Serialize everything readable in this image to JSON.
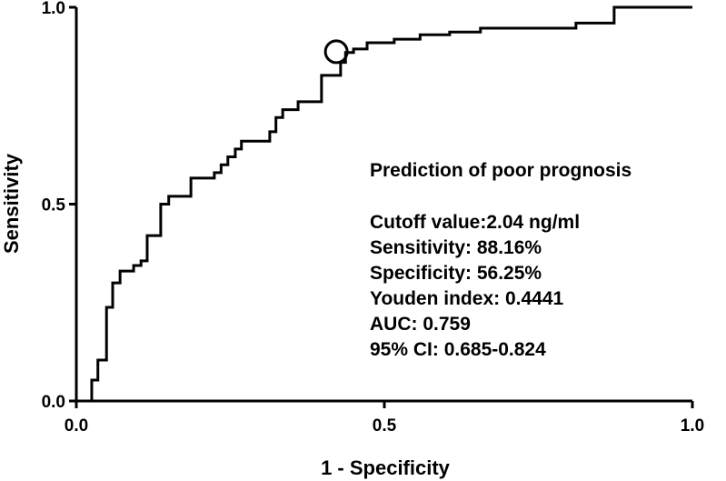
{
  "chart_data": {
    "type": "line",
    "xlabel": "1 - Specificity",
    "ylabel": "Sensitivity",
    "xlim": [
      0,
      1
    ],
    "ylim": [
      0,
      1
    ],
    "xticks": [
      {
        "value": 0,
        "label": "0.0"
      },
      {
        "value": 0.5,
        "label": "0.5"
      },
      {
        "value": 1,
        "label": "1.0"
      }
    ],
    "yticks": [
      {
        "value": 0,
        "label": "0.0"
      },
      {
        "value": 0.5,
        "label": "0.5"
      },
      {
        "value": 1,
        "label": "1.0"
      }
    ],
    "grid": false,
    "series": [
      {
        "color": "#000000",
        "x": [
          0.025,
          0.025,
          0.035,
          0.035,
          0.049,
          0.049,
          0.059,
          0.059,
          0.071,
          0.071,
          0.093,
          0.093,
          0.105,
          0.105,
          0.115,
          0.115,
          0.137,
          0.137,
          0.15,
          0.15,
          0.186,
          0.186,
          0.224,
          0.224,
          0.235,
          0.235,
          0.246,
          0.246,
          0.258,
          0.258,
          0.268,
          0.268,
          0.314,
          0.314,
          0.324,
          0.324,
          0.335,
          0.335,
          0.36,
          0.36,
          0.398,
          0.398,
          0.429,
          0.429,
          0.437,
          0.437,
          0.45,
          0.45,
          0.472,
          0.472,
          0.516,
          0.516,
          0.558,
          0.558,
          0.606,
          0.606,
          0.656,
          0.656,
          0.811,
          0.811,
          0.873,
          0.873,
          1.0
        ],
        "values": [
          0,
          0.053,
          0.053,
          0.104,
          0.104,
          0.238,
          0.238,
          0.3,
          0.3,
          0.33,
          0.33,
          0.344,
          0.344,
          0.356,
          0.356,
          0.42,
          0.42,
          0.5,
          0.5,
          0.52,
          0.52,
          0.566,
          0.566,
          0.58,
          0.58,
          0.6,
          0.6,
          0.62,
          0.62,
          0.64,
          0.64,
          0.66,
          0.66,
          0.684,
          0.684,
          0.72,
          0.72,
          0.74,
          0.74,
          0.76,
          0.76,
          0.827,
          0.827,
          0.86,
          0.86,
          0.885,
          0.885,
          0.894,
          0.894,
          0.91,
          0.91,
          0.919,
          0.919,
          0.93,
          0.93,
          0.937,
          0.937,
          0.947,
          0.947,
          0.96,
          0.96,
          1.0,
          1.0
        ]
      }
    ],
    "marker": {
      "x": 0.422,
      "y": 0.887
    },
    "annotation_title": "Prediction of poor prognosis",
    "annotations": [
      "Cutoff value:2.04 ng/ml",
      "Sensitivity: 88.16%",
      "Specificity: 56.25%",
      "Youden index: 0.4441",
      "AUC: 0.759",
      "95% CI: 0.685-0.824"
    ]
  }
}
